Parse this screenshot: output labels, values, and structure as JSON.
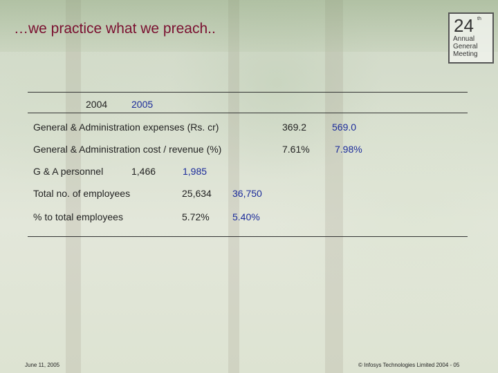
{
  "title": "…we practice what we preach..",
  "logo": {
    "number": "24",
    "suffix": "th",
    "lines": [
      "Annual",
      "General",
      "Meeting"
    ]
  },
  "header": {
    "year1": "2004",
    "year2": "2005"
  },
  "rows": [
    {
      "label": "General & Administration expenses (Rs. cr)",
      "v2004": "369.2",
      "v2005": "569.0"
    },
    {
      "label": "General & Administration cost / revenue (%)",
      "v2004": "7.61%",
      "v2005": "7.98%"
    },
    {
      "label": "G & A personnel",
      "v2004": "1,466",
      "v2005": "1,985"
    },
    {
      "label": "Total no. of employees",
      "v2004": "25,634",
      "v2005": "36,750"
    },
    {
      "label": "% to total employees",
      "v2004": "5.72%",
      "v2005": "5.40%"
    }
  ],
  "footer": {
    "date": "June 11, 2005",
    "copyright": "© Infosys Technologies Limited 2004 - 05"
  },
  "colors": {
    "title": "#7a1030",
    "value_2005": "#1a2a9a"
  }
}
